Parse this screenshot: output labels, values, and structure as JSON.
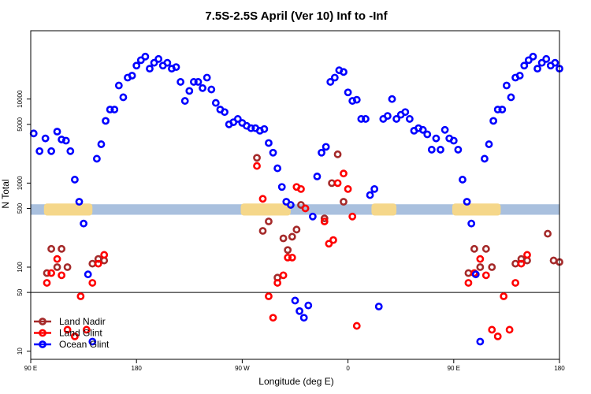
{
  "chart_data": {
    "type": "scatter",
    "title": "7.5S-2.5S April (Ver 10)   Inf to -Inf",
    "xlabel": "Longitude (deg E)",
    "ylabel": "N Total",
    "yscale": "log",
    "xlim": [
      90,
      450
    ],
    "ylim": [
      8,
      65000
    ],
    "x_ticks": [
      {
        "value": 90,
        "label": "90 E"
      },
      {
        "value": 162,
        "label": "180"
      },
      {
        "value": 234,
        "label": "90 W"
      },
      {
        "value": 306,
        "label": "0"
      },
      {
        "value": 378,
        "label": "90 E"
      },
      {
        "value": 450,
        "label": "180"
      }
    ],
    "y_ticks": [
      {
        "value": 10,
        "label": "10"
      },
      {
        "value": 50,
        "label": "50"
      },
      {
        "value": 100,
        "label": "100"
      },
      {
        "value": 500,
        "label": "500"
      },
      {
        "value": 1000,
        "label": "1000"
      },
      {
        "value": 5000,
        "label": "5000"
      },
      {
        "value": 10000,
        "label": "10000"
      }
    ],
    "reference_line": 50,
    "band": {
      "y_range": [
        420,
        560
      ],
      "color": "#a9c0de",
      "highlight_color": "#f5d78a",
      "highlight_segments": [
        [
          99,
          132
        ],
        [
          233,
          267
        ],
        [
          322,
          339
        ],
        [
          377,
          410
        ]
      ]
    },
    "series": [
      {
        "name": "Land Nadir",
        "color": "#a52a2a",
        "x": [
          101,
          104,
          108,
          111,
          115,
          132,
          136,
          140,
          244,
          248,
          252,
          258,
          262,
          265,
          268,
          271,
          274,
          290,
          295,
          299,
          303,
          388,
          392,
          396,
          400,
          404,
          420,
          424,
          428,
          442,
          446,
          450
        ],
        "y": [
          85,
          165,
          100,
          165,
          100,
          110,
          125,
          120,
          2000,
          270,
          350,
          75,
          220,
          160,
          230,
          280,
          550,
          380,
          1000,
          2200,
          600,
          85,
          165,
          100,
          165,
          100,
          110,
          125,
          120,
          250,
          120,
          115
        ],
        "y_note_last_values": "approx"
      },
      {
        "name": "Land Glint",
        "color": "#ff0000",
        "x": [
          101,
          104,
          108,
          111,
          115,
          120,
          124,
          128,
          132,
          136,
          140,
          244,
          248,
          252,
          255,
          258,
          262,
          265,
          268,
          271,
          274,
          277,
          290,
          293,
          296,
          299,
          303,
          306,
          309,
          312,
          388,
          392,
          396,
          400,
          404,
          408,
          412,
          416,
          420,
          424,
          428
        ],
        "y": [
          65,
          85,
          125,
          80,
          18,
          15,
          45,
          18,
          65,
          110,
          140,
          1600,
          650,
          45,
          25,
          65,
          80,
          130,
          130,
          900,
          850,
          500,
          350,
          190,
          210,
          1000,
          1300,
          850,
          400,
          20,
          65,
          85,
          125,
          80,
          18,
          15,
          45,
          18,
          65,
          110,
          140
        ],
        "y_note": "approx"
      },
      {
        "name": "Ocean Glint",
        "color": "#0000ff",
        "x": [
          92,
          96,
          100,
          104,
          108,
          111,
          114,
          117,
          120,
          123,
          126,
          129,
          132,
          135,
          138,
          141,
          144,
          147,
          150,
          153,
          156,
          159,
          162,
          165,
          168,
          171,
          174,
          177,
          180,
          183,
          186,
          189,
          192,
          195,
          198,
          201,
          204,
          207,
          210,
          213,
          216,
          219,
          222,
          225,
          228,
          231,
          234,
          237,
          240,
          243,
          246,
          249,
          252,
          255,
          258,
          261,
          264,
          267,
          270,
          273,
          276,
          279,
          282,
          285,
          288,
          291,
          294,
          297,
          300,
          303,
          306,
          309,
          312,
          315,
          318,
          321,
          324,
          327,
          330,
          333,
          336,
          339,
          342,
          345,
          348,
          351,
          354,
          357,
          360,
          363,
          366,
          369,
          372,
          375,
          378,
          381,
          384,
          387,
          390,
          393,
          396,
          399,
          402,
          405,
          408,
          411,
          414,
          417,
          420,
          423,
          426,
          429,
          432,
          435,
          438,
          441,
          444,
          447,
          450
        ],
        "y": [
          3900,
          2400,
          3400,
          2400,
          4100,
          3300,
          3200,
          2400,
          1100,
          600,
          330,
          82,
          13,
          1950,
          2900,
          5500,
          7500,
          7500,
          14500,
          10500,
          18000,
          19000,
          25000,
          29000,
          32000,
          23000,
          27000,
          30000,
          25000,
          27000,
          23000,
          24000,
          16000,
          9500,
          12500,
          16000,
          16000,
          13500,
          18000,
          13000,
          9000,
          7500,
          7000,
          5000,
          5300,
          5800,
          5200,
          4800,
          4500,
          4500,
          4200,
          4400,
          3000,
          2300,
          1500,
          900,
          600,
          550,
          40,
          30,
          25,
          35,
          400,
          1200,
          2300,
          2700,
          16000,
          18000,
          22000,
          21000,
          12000,
          9500,
          9800,
          5800,
          5800,
          720,
          850,
          34,
          5800,
          6300,
          10000,
          5800,
          6500,
          7000,
          5800,
          4200,
          4500,
          4300,
          3800,
          2500,
          3400,
          2500,
          4300,
          3400,
          3200,
          2500,
          1100,
          600,
          330,
          82,
          13,
          1950,
          2900,
          5500,
          7500,
          7500,
          14500,
          10500,
          18000,
          19000,
          25000,
          29000,
          32000,
          23000,
          27000,
          30000,
          25000,
          27000,
          23000
        ],
        "y_note": "approx"
      }
    ],
    "legend": {
      "position": "bottom-left",
      "entries": [
        "Land Nadir",
        "Land Glint",
        "Ocean Glint"
      ]
    }
  }
}
